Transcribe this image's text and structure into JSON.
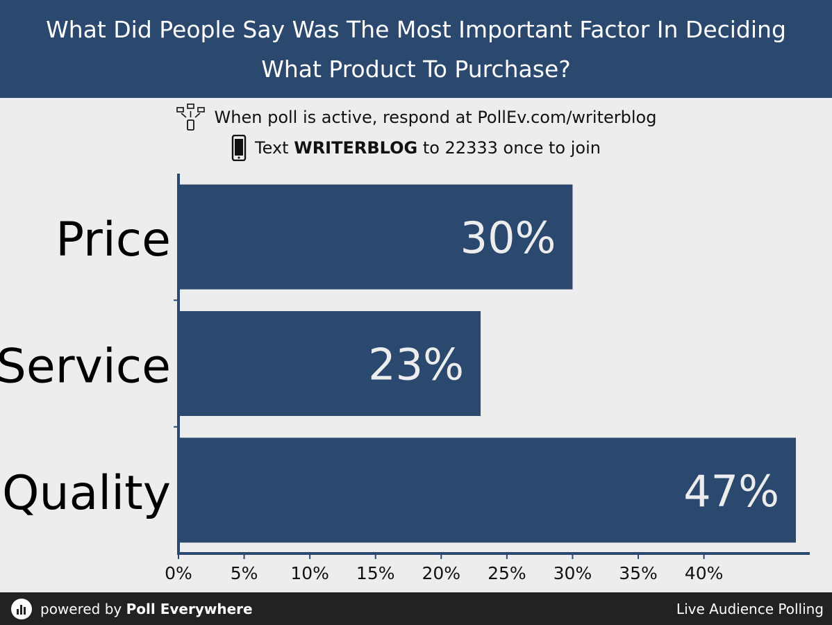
{
  "header": {
    "title": "What Did People Say Was The Most Important Factor In Deciding What Product To Purchase?"
  },
  "instructions": {
    "web_text": "When poll is active, respond at PollEv.com/writerblog",
    "sms_prefix": "Text",
    "sms_keyword": "WRITERBLOG",
    "sms_suffix": "to 22333 once to join",
    "web_icon": "devices-icon",
    "sms_icon": "phone-icon"
  },
  "chart_data": {
    "type": "bar",
    "orientation": "horizontal",
    "categories": [
      "Price",
      "Service",
      "Quality"
    ],
    "values": [
      30,
      23,
      47
    ],
    "value_labels": [
      "30%",
      "23%",
      "47%"
    ],
    "xlim": [
      0,
      47
    ],
    "xticks": [
      0,
      5,
      10,
      15,
      20,
      25,
      30,
      35,
      40
    ],
    "xtick_labels": [
      "0%",
      "5%",
      "10%",
      "15%",
      "20%",
      "25%",
      "30%",
      "35%",
      "40%"
    ],
    "grid": false,
    "bar_color": "#2b486f",
    "label_color": "#ededed"
  },
  "footer": {
    "powered_prefix": "powered by",
    "brand": "Poll Everywhere",
    "tagline": "Live Audience Polling",
    "logo_icon": "poll-everywhere-logo-icon"
  }
}
